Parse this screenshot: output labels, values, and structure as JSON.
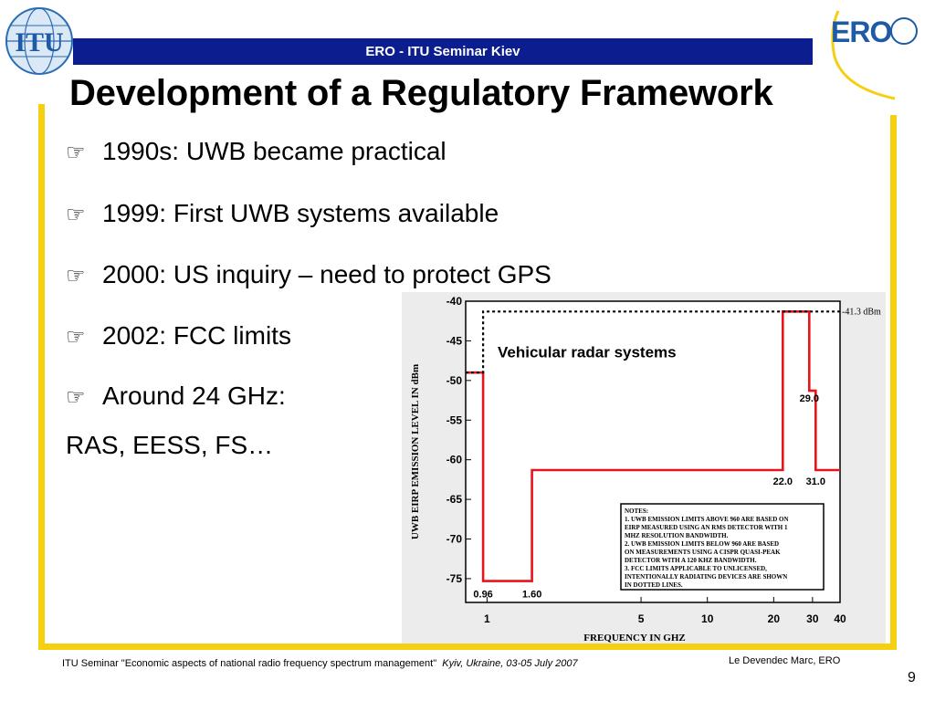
{
  "header": {
    "bar_text": "ERO - ITU Seminar Kiev",
    "itu_logo_text": "ITU",
    "ero_logo_text": "ERO"
  },
  "slide": {
    "title": "Development of a Regulatory Framework",
    "bullets": [
      "1990s: UWB became practical",
      "1999: First UWB systems available",
      "2000: US inquiry – need to protect GPS",
      "2002: FCC limits",
      "Around 24 GHz:"
    ],
    "plain_line": "RAS, EESS, FS…",
    "bullet_icon": "pointing-hand-icon"
  },
  "footer": {
    "left_prefix": "ITU Seminar  \"Economic aspects of national radio frequency spectrum management\"",
    "left_italic": "Kyiv, Ukraine, 03-05 July 2007",
    "right": "Le Devendec Marc, ERO",
    "page_number": "9"
  },
  "chart_data": {
    "type": "line",
    "xlabel": "FREQUENCY IN GHZ",
    "ylabel": "UWB EIRP EMISSION LEVEL IN dBm",
    "x_scale": "log",
    "xlim": [
      0.8,
      40
    ],
    "ylim": [
      -78,
      -40
    ],
    "x_ticks": [
      1,
      5,
      10,
      20,
      30,
      40
    ],
    "y_ticks": [
      -40,
      -45,
      -50,
      -55,
      -60,
      -65,
      -70,
      -75
    ],
    "series": [
      {
        "line": "solid",
        "color": "#e8141b",
        "points": [
          [
            0.8,
            -49
          ],
          [
            0.96,
            -49
          ],
          [
            0.96,
            -75.3
          ],
          [
            1.6,
            -75.3
          ],
          [
            1.6,
            -61.3
          ],
          [
            22,
            -61.3
          ],
          [
            22,
            -41.3
          ],
          [
            29,
            -41.3
          ],
          [
            29,
            -51.3
          ],
          [
            31,
            -51.3
          ],
          [
            31,
            -61.3
          ],
          [
            40,
            -61.3
          ]
        ]
      },
      {
        "line": "dotted",
        "color": "#000000",
        "points": [
          [
            0.8,
            -49
          ],
          [
            0.96,
            -49
          ],
          [
            0.96,
            -41.3
          ],
          [
            40,
            -41.3
          ]
        ]
      }
    ],
    "annotations": [
      {
        "text": "Vehicular radar systems",
        "x": 4.2,
        "y": -46.5
      },
      {
        "text": "-41.3 dBm",
        "x": 40,
        "y": -41.3
      },
      {
        "text": "0.96",
        "x": 0.96,
        "y": -76.9
      },
      {
        "text": "1.60",
        "x": 1.6,
        "y": -76.9
      },
      {
        "text": "22.0",
        "x": 22,
        "y": -62.7
      },
      {
        "text": "29.0",
        "x": 29,
        "y": -52.2
      },
      {
        "text": "31.0",
        "x": 31,
        "y": -62.7
      }
    ],
    "notes": [
      "NOTES:",
      "1.  UWB EMISSION LIMITS ABOVE 960 ARE BASED ON",
      "EIRP MEASURED USING AN RMS DETECTOR WITH 1",
      "MHZ RESOLUTION BANDWIDTH.",
      "2.  UWB EMISSION LIMITS BELOW 960 ARE BASED",
      "ON MEASUREMENTS USING A CISPR QUASI-PEAK",
      "DETECTOR WITH A 120 KHZ BANDWIDTH.",
      "3.  FCC LIMITS APPLICABLE TO UNLICENSED,",
      "INTENTIONALLY RADIATING  DEVICES ARE SHOWN",
      "IN DOTTED LINES."
    ],
    "grid": false,
    "legend": "none"
  }
}
